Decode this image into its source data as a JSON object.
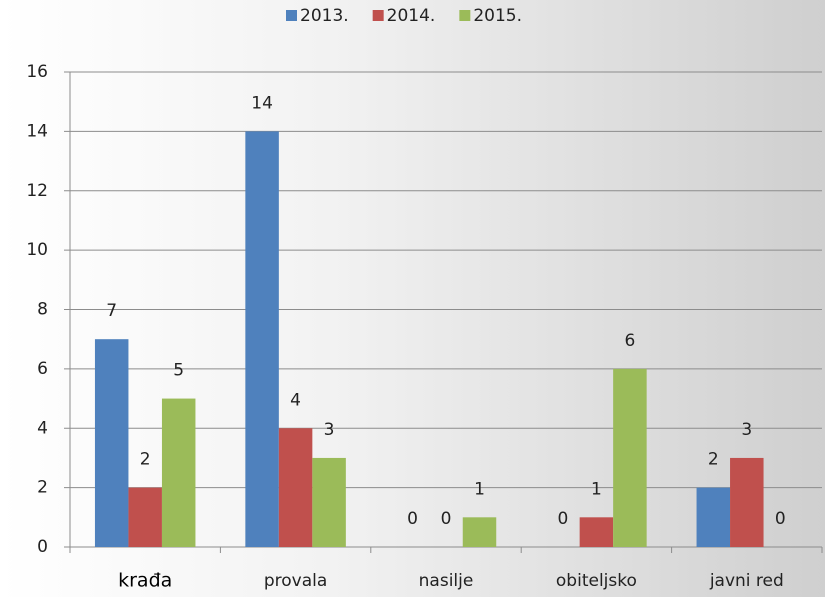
{
  "chart_data": {
    "type": "bar",
    "categories": [
      "krađa",
      "provala",
      "nasilje",
      "obiteljsko",
      "javni red"
    ],
    "series": [
      {
        "name": "2013.",
        "color": "#4f81bd",
        "values": [
          7,
          14,
          0,
          0,
          2
        ]
      },
      {
        "name": "2014.",
        "color": "#c0504d",
        "values": [
          2,
          4,
          0,
          1,
          3
        ]
      },
      {
        "name": "2015.",
        "color": "#9bbb59",
        "values": [
          5,
          3,
          1,
          6,
          0
        ]
      }
    ],
    "ylim": [
      0,
      16
    ],
    "yticks": [
      0,
      2,
      4,
      6,
      8,
      10,
      12,
      14,
      16
    ],
    "grid": true,
    "legend": "top"
  }
}
